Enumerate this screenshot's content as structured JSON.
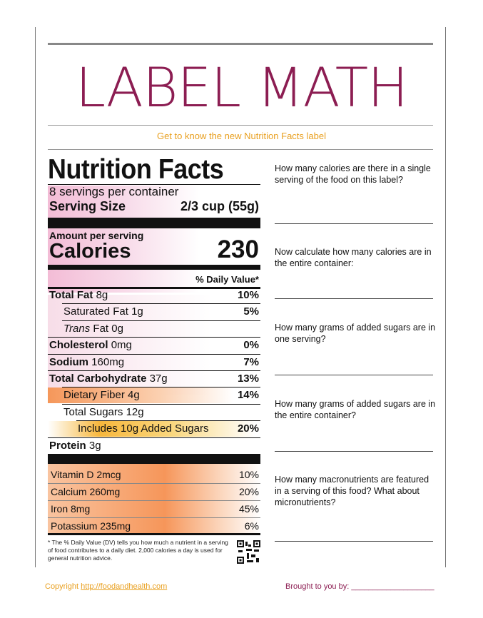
{
  "header": {
    "title": "LABEL MATH",
    "subtitle": "Get to know the new Nutrition Facts label"
  },
  "label": {
    "title": "Nutrition Facts",
    "servings": "8 servings per container",
    "serving_size_label": "Serving Size",
    "serving_size_value": "2/3 cup (55g)",
    "amount_per_serving": "Amount per serving",
    "calories_label": "Calories",
    "calories_value": "230",
    "daily_value_header": "% Daily Value*",
    "rows": [
      {
        "name": "Total Fat",
        "amount": "8g",
        "dv": "10%"
      },
      {
        "name": "Saturated Fat",
        "amount": "1g",
        "dv": "5%"
      },
      {
        "name": "Trans",
        "amount": "Fat 0g"
      },
      {
        "name": "Cholesterol",
        "amount": "0mg",
        "dv": "0%"
      },
      {
        "name": "Sodium",
        "amount": "160mg",
        "dv": "7%"
      },
      {
        "name": "Total Carbohydrate",
        "amount": "37g",
        "dv": "13%"
      },
      {
        "name": "Dietary Fiber",
        "amount": "4g",
        "dv": "14%"
      },
      {
        "name": "Total Sugars",
        "amount": "12g"
      },
      {
        "name": "Includes 10g Added Sugars",
        "dv": "20%"
      },
      {
        "name": "Protein",
        "amount": "3g"
      }
    ],
    "vitamins": [
      {
        "name": "Vitamin D 2mcg",
        "dv": "10%"
      },
      {
        "name": "Calcium 260mg",
        "dv": "20%"
      },
      {
        "name": "Iron 8mg",
        "dv": "45%"
      },
      {
        "name": "Potassium 235mg",
        "dv": "6%"
      }
    ],
    "footnote": "* The % Daily Value (DV) tells you how much a nutrient in a serving of food contributes to a daily diet. 2,000 calories a day is used for general nutrition advice."
  },
  "questions": [
    "How many calories are there in a single serving of the food on this label?",
    "Now calculate how many calories are in the entire container:",
    "How many grams of added sugars are in one serving?",
    "How many grams of added sugars are in the entire container?",
    "How many macronutrients are featured in a serving of this food? What about micronutrients?"
  ],
  "footer": {
    "copyright_prefix": "Copyright",
    "copyright_link": "http://foodandhealth.com",
    "brought_by": "Brought to you by: ___________________"
  }
}
